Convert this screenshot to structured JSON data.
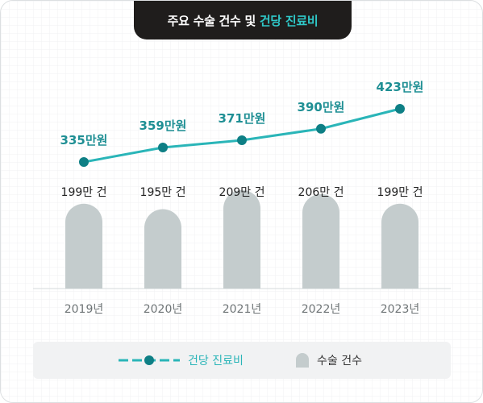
{
  "title": {
    "main": "주요 수술 건수 및",
    "highlight": "건당 진료비"
  },
  "colors": {
    "line": "#2ab5b8",
    "line_dot": "#0e7f85",
    "bar": "#c4cccd",
    "title_bg": "#1f1d1c",
    "highlight": "#2fc8c8"
  },
  "legend": {
    "line_label": "건당 진료비",
    "bar_label": "수술 건수"
  },
  "chart_data": {
    "type": "bar",
    "categories": [
      "2019년",
      "2020년",
      "2021년",
      "2022년",
      "2023년"
    ],
    "series": [
      {
        "name": "건당 진료비",
        "type": "line",
        "values": [
          335,
          359,
          371,
          390,
          423
        ],
        "labels": [
          "335만원",
          "359만원",
          "371만원",
          "390만원",
          "423만원"
        ]
      },
      {
        "name": "수술 건수",
        "type": "bar",
        "values": [
          199,
          195,
          209,
          206,
          199
        ],
        "labels": [
          "199만 건",
          "195만 건",
          "209만 건",
          "206만 건",
          "199만 건"
        ]
      }
    ]
  }
}
